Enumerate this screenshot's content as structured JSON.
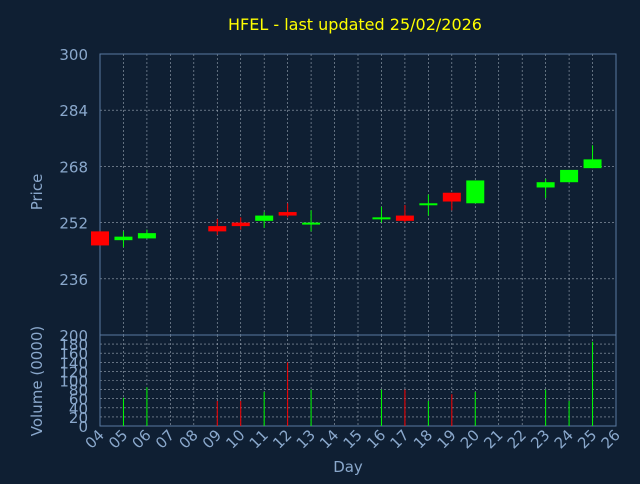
{
  "chart_data": {
    "type": "candlestick",
    "title": "HFEL - last updated 25/02/2026",
    "xlabel": "Day",
    "colors": {
      "background": "#0f1f33",
      "axis": "#5a7aa0",
      "grid": "#c8d2de",
      "title": "#ffff00",
      "tick_text": "#8aa8cc",
      "up": "#00ff00",
      "down": "#ff0000"
    },
    "x_ticks": [
      "04",
      "05",
      "06",
      "07",
      "08",
      "09",
      "10",
      "11",
      "12",
      "13",
      "14",
      "15",
      "16",
      "17",
      "18",
      "19",
      "20",
      "21",
      "22",
      "23",
      "24",
      "25",
      "26"
    ],
    "price_panel": {
      "ylabel": "Price",
      "ylim": [
        220,
        300
      ],
      "y_ticks": [
        300,
        284,
        268,
        252,
        236
      ],
      "candles": [
        {
          "day": "04",
          "open": 249.5,
          "high": 249.5,
          "low": 245.5,
          "close": 245.5
        },
        {
          "day": "05",
          "open": 247.0,
          "high": 249.5,
          "low": 245.0,
          "close": 248.0
        },
        {
          "day": "06",
          "open": 247.5,
          "high": 250.0,
          "low": 247.5,
          "close": 249.0
        },
        {
          "day": "09",
          "open": 251.0,
          "high": 253.0,
          "low": 248.5,
          "close": 249.5
        },
        {
          "day": "10",
          "open": 252.0,
          "high": 253.5,
          "low": 250.0,
          "close": 251.0
        },
        {
          "day": "11",
          "open": 252.5,
          "high": 255.0,
          "low": 250.5,
          "close": 254.0
        },
        {
          "day": "12",
          "open": 255.0,
          "high": 257.5,
          "low": 253.5,
          "close": 254.0
        },
        {
          "day": "13",
          "open": 251.5,
          "high": 255.5,
          "low": 249.5,
          "close": 252.0
        },
        {
          "day": "16",
          "open": 253.0,
          "high": 256.5,
          "low": 252.0,
          "close": 253.5
        },
        {
          "day": "17",
          "open": 254.0,
          "high": 257.0,
          "low": 252.0,
          "close": 252.5
        },
        {
          "day": "18",
          "open": 257.0,
          "high": 260.0,
          "low": 254.0,
          "close": 257.5
        },
        {
          "day": "19",
          "open": 260.5,
          "high": 260.5,
          "low": 255.5,
          "close": 258.0
        },
        {
          "day": "20",
          "open": 257.5,
          "high": 264.0,
          "low": 257.5,
          "close": 264.0
        },
        {
          "day": "23",
          "open": 262.0,
          "high": 264.5,
          "low": 259.0,
          "close": 263.5
        },
        {
          "day": "24",
          "open": 263.5,
          "high": 267.0,
          "low": 263.5,
          "close": 267.0
        },
        {
          "day": "25",
          "open": 267.5,
          "high": 274.0,
          "low": 267.5,
          "close": 270.0
        }
      ]
    },
    "volume_panel": {
      "ylabel": "Volume (0000)",
      "ylim": [
        0,
        200
      ],
      "y_ticks": [
        200,
        180,
        160,
        140,
        120,
        100,
        80,
        60,
        40,
        20,
        0
      ],
      "bars": [
        {
          "day": "04",
          "volume": 0,
          "direction": "down"
        },
        {
          "day": "05",
          "volume": 62,
          "direction": "up"
        },
        {
          "day": "06",
          "volume": 85,
          "direction": "up"
        },
        {
          "day": "09",
          "volume": 55,
          "direction": "down"
        },
        {
          "day": "10",
          "volume": 55,
          "direction": "down"
        },
        {
          "day": "11",
          "volume": 75,
          "direction": "up"
        },
        {
          "day": "12",
          "volume": 140,
          "direction": "down"
        },
        {
          "day": "13",
          "volume": 80,
          "direction": "up"
        },
        {
          "day": "16",
          "volume": 80,
          "direction": "up"
        },
        {
          "day": "17",
          "volume": 80,
          "direction": "down"
        },
        {
          "day": "18",
          "volume": 55,
          "direction": "up"
        },
        {
          "day": "19",
          "volume": 70,
          "direction": "down"
        },
        {
          "day": "20",
          "volume": 75,
          "direction": "up"
        },
        {
          "day": "23",
          "volume": 80,
          "direction": "up"
        },
        {
          "day": "24",
          "volume": 55,
          "direction": "up"
        },
        {
          "day": "25",
          "volume": 185,
          "direction": "up"
        }
      ]
    }
  }
}
